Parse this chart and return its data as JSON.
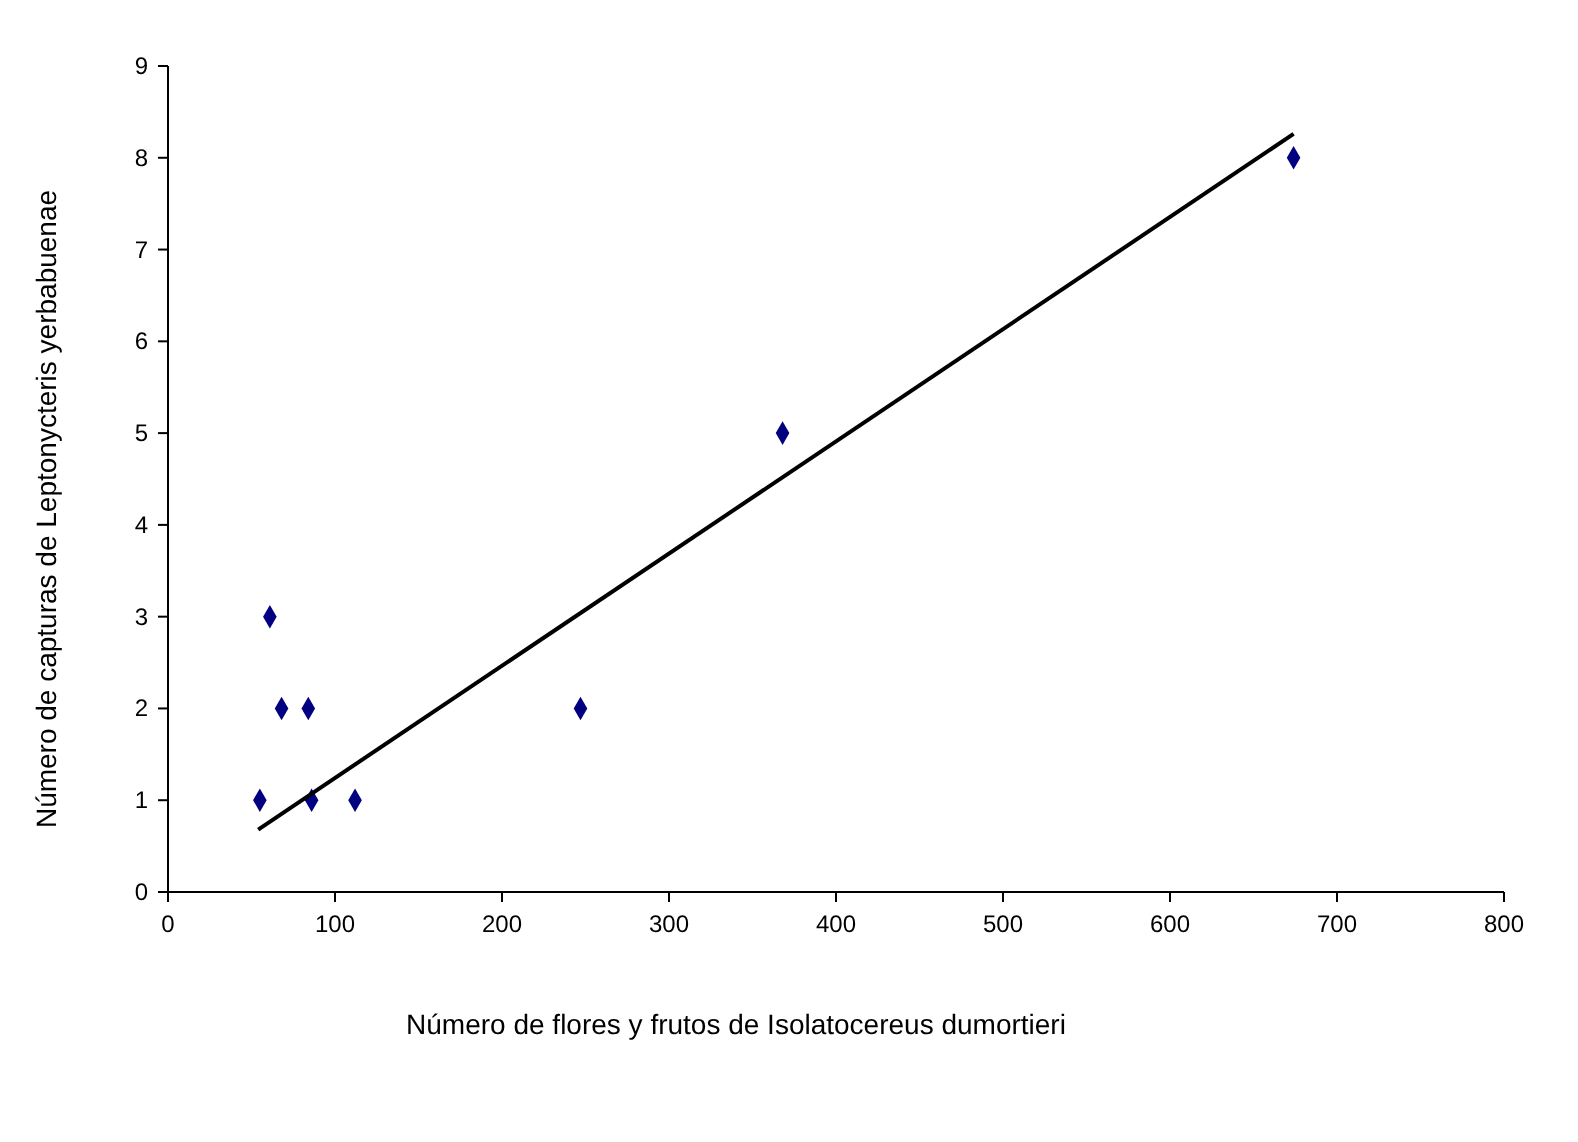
{
  "chart_data": {
    "type": "scatter",
    "xlabel": "Número de flores y frutos de Isolatocereus dumortieri",
    "ylabel": "Número de  capturas de  Leptonycteris yerbabuenae",
    "xlim": [
      0,
      800
    ],
    "xticks": [
      0,
      100,
      200,
      300,
      400,
      500,
      600,
      700,
      800
    ],
    "ylim": [
      0,
      9
    ],
    "yticks": [
      0,
      1,
      2,
      3,
      4,
      5,
      6,
      7,
      8,
      9
    ],
    "grid": false,
    "marker": "diamond",
    "series": [
      {
        "color": "#000080",
        "x": [
          55,
          61,
          68,
          84,
          86,
          112,
          247,
          368,
          674
        ],
        "values": [
          1,
          3,
          2,
          2,
          1,
          1,
          2,
          5,
          8
        ]
      },
      {
        "type": "line",
        "color": "#000000",
        "marker": "none",
        "line_style": "solid",
        "x": [
          54,
          674
        ],
        "values": [
          0.68,
          8.26
        ]
      }
    ]
  }
}
